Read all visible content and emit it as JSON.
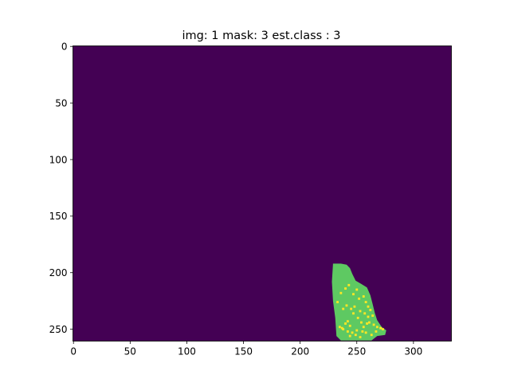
{
  "chart_data": {
    "type": "heatmap",
    "title": "img: 1 mask: 3 est.class : 3",
    "xlabel": "",
    "ylabel": "",
    "xlim": [
      -0.5,
      333.5
    ],
    "ylim": [
      260.5,
      -0.5
    ],
    "xticks": [
      0,
      50,
      100,
      150,
      200,
      250,
      300
    ],
    "yticks": [
      0,
      50,
      100,
      150,
      200,
      250
    ],
    "grid": false,
    "colormap": "viridis",
    "colors": {
      "background": "#440154",
      "region": "#5ec962",
      "highlight": "#fde725"
    },
    "background_value": 0,
    "region_value": 3,
    "highlight_value": 4,
    "region_outline": [
      [
        229,
        192
      ],
      [
        236,
        192
      ],
      [
        241,
        193
      ],
      [
        244,
        196
      ],
      [
        246,
        201
      ],
      [
        249,
        207
      ],
      [
        254,
        210
      ],
      [
        259,
        213
      ],
      [
        262,
        220
      ],
      [
        264,
        228
      ],
      [
        266,
        236
      ],
      [
        268,
        242
      ],
      [
        272,
        248
      ],
      [
        276,
        251
      ],
      [
        275,
        255
      ],
      [
        268,
        256
      ],
      [
        263,
        260
      ],
      [
        236,
        260
      ],
      [
        232,
        256
      ],
      [
        231,
        240
      ],
      [
        229,
        225
      ],
      [
        228,
        208
      ]
    ],
    "highlight_points": [
      [
        235,
        248
      ],
      [
        237,
        249
      ],
      [
        238,
        250
      ],
      [
        240,
        245
      ],
      [
        242,
        243
      ],
      [
        244,
        247
      ],
      [
        248,
        230
      ],
      [
        251,
        240
      ],
      [
        254,
        244
      ],
      [
        256,
        248
      ],
      [
        259,
        245
      ],
      [
        261,
        244
      ],
      [
        265,
        246
      ],
      [
        268,
        248
      ],
      [
        271,
        249
      ],
      [
        273,
        250
      ],
      [
        255,
        252
      ],
      [
        258,
        253
      ],
      [
        263,
        255
      ],
      [
        244,
        256
      ],
      [
        246,
        253
      ],
      [
        250,
        251
      ],
      [
        247,
        219
      ],
      [
        252,
        223
      ],
      [
        256,
        221
      ],
      [
        258,
        226
      ],
      [
        260,
        230
      ],
      [
        262,
        233
      ],
      [
        245,
        232
      ],
      [
        247,
        236
      ],
      [
        236,
        218
      ],
      [
        240,
        214
      ],
      [
        243,
        211
      ],
      [
        241,
        229
      ],
      [
        238,
        232
      ],
      [
        253,
        234
      ],
      [
        257,
        236
      ],
      [
        260,
        239
      ],
      [
        249,
        255
      ],
      [
        253,
        257
      ],
      [
        267,
        252
      ],
      [
        242,
        252
      ],
      [
        264,
        238
      ],
      [
        233,
        226
      ],
      [
        250,
        215
      ]
    ]
  }
}
